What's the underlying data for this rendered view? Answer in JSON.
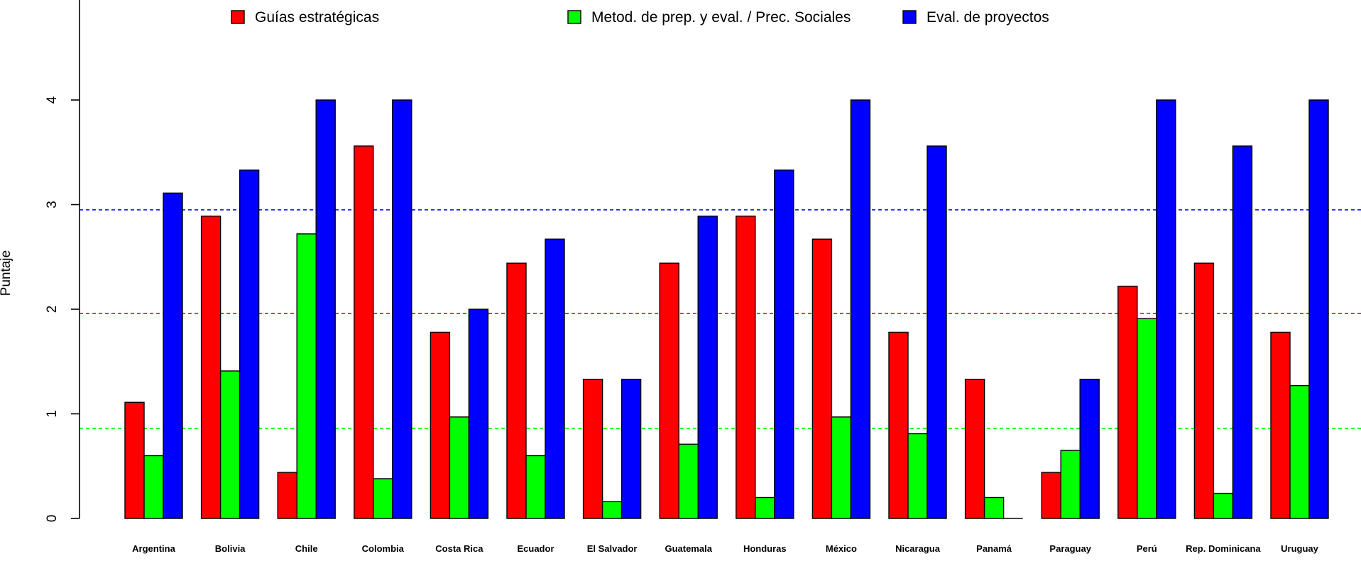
{
  "chart_data": {
    "type": "bar",
    "title": "",
    "xlabel": "",
    "ylabel": "Puntaje",
    "ylim": [
      0,
      4.95
    ],
    "yticks": [
      0,
      1,
      2,
      3,
      4
    ],
    "grid": false,
    "legend_position": "top",
    "categories": [
      "Argentina",
      "Bolivia",
      "Chile",
      "Colombia",
      "Costa Rica",
      "Ecuador",
      "El Salvador",
      "Guatemala",
      "Honduras",
      "México",
      "Nicaragua",
      "Panamá",
      "Paraguay",
      "Perú",
      "Rep. Dominicana",
      "Uruguay"
    ],
    "series": [
      {
        "name": "Guías estratégicas",
        "color": "#ff0000",
        "values": [
          1.11,
          2.89,
          0.44,
          3.56,
          1.78,
          2.44,
          1.33,
          2.44,
          2.89,
          2.67,
          1.78,
          1.33,
          0.44,
          2.22,
          2.44,
          1.78
        ]
      },
      {
        "name": "Metod. de prep. y eval. / Prec. Sociales",
        "color": "#00ff00",
        "values": [
          0.6,
          1.41,
          2.72,
          0.38,
          0.97,
          0.6,
          0.16,
          0.71,
          0.2,
          0.97,
          0.81,
          0.2,
          0.65,
          1.91,
          0.24,
          1.27
        ]
      },
      {
        "name": "Eval. de proyectos",
        "color": "#0000ff",
        "values": [
          3.11,
          3.33,
          4.0,
          4.0,
          2.0,
          2.67,
          1.33,
          2.89,
          3.33,
          4.0,
          3.56,
          0.0,
          1.33,
          4.0,
          3.56,
          4.0
        ]
      }
    ],
    "reference_lines": [
      {
        "value": 2.95,
        "color": "#0000ff",
        "style": "dashed"
      },
      {
        "value": 1.96,
        "color": "#ff0000",
        "style": "dashed"
      },
      {
        "value": 0.86,
        "color": "#00ff00",
        "style": "dashed"
      }
    ]
  }
}
